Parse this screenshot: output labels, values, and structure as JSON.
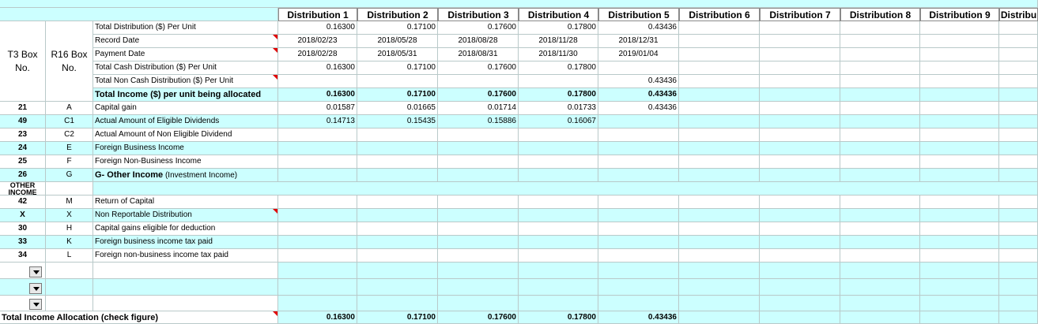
{
  "distribution_headers": [
    "Distribution 1",
    "Distribution 2",
    "Distribution 3",
    "Distribution 4",
    "Distribution 5",
    "Distribution 6",
    "Distribution 7",
    "Distribution 8",
    "Distribution 9",
    "Distribu"
  ],
  "t3_header": "T3 Box No.",
  "r16_header": "R16 Box No.",
  "info_rows": [
    {
      "label": "Total Distribution ($) Per Unit",
      "values": [
        "0.16300",
        "0.17100",
        "0.17600",
        "0.17800",
        "0.43436"
      ],
      "align": "num"
    },
    {
      "label": "Record Date",
      "values": [
        "2018/02/23",
        "2018/05/28",
        "2018/08/28",
        "2018/11/28",
        "2018/12/31"
      ],
      "align": "ctr"
    },
    {
      "label": "Payment Date",
      "values": [
        "2018/02/28",
        "2018/05/31",
        "2018/08/31",
        "2018/11/30",
        "2019/01/04"
      ],
      "align": "ctr"
    },
    {
      "label": "Total Cash Distribution ($) Per Unit",
      "values": [
        "0.16300",
        "0.17100",
        "0.17600",
        "0.17800",
        ""
      ],
      "align": "num"
    },
    {
      "label": "Total Non Cash Distribution ($) Per Unit",
      "values": [
        "",
        "",
        "",
        "",
        "0.43436"
      ],
      "align": "num"
    }
  ],
  "total_income_row": {
    "label": "Total Income ($) per unit being allocated",
    "values": [
      "0.16300",
      "0.17100",
      "0.17600",
      "0.17800",
      "0.43436"
    ]
  },
  "alloc_rows": [
    {
      "t3": "21",
      "r16": "A",
      "label": "Capital gain",
      "values": [
        "0.01587",
        "0.01665",
        "0.01714",
        "0.01733",
        "0.43436"
      ]
    },
    {
      "t3": "49",
      "r16": "C1",
      "label": "Actual Amount of Eligible Dividends",
      "values": [
        "0.14713",
        "0.15435",
        "0.15886",
        "0.16067",
        ""
      ]
    },
    {
      "t3": "23",
      "r16": "C2",
      "label": "Actual Amount of Non Eligible Dividend",
      "values": [
        "",
        "",
        "",
        "",
        ""
      ]
    },
    {
      "t3": "24",
      "r16": "E",
      "label": "Foreign Business Income",
      "values": [
        "",
        "",
        "",
        "",
        ""
      ]
    },
    {
      "t3": "25",
      "r16": "F",
      "label": "Foreign Non-Business Income",
      "values": [
        "",
        "",
        "",
        "",
        ""
      ]
    },
    {
      "t3": "26",
      "r16": "G",
      "label": "G- Other Income",
      "label_extra": " (Investment Income)",
      "values": [
        "",
        "",
        "",
        "",
        ""
      ]
    }
  ],
  "other_income_label": "OTHER INCOME",
  "lower_rows": [
    {
      "t3": "42",
      "r16": "M",
      "label": "Return of Capital"
    },
    {
      "t3": "X",
      "r16": "X",
      "label": "Non Reportable Distribution"
    },
    {
      "t3": "30",
      "r16": "H",
      "label": "Capital gains eligible for deduction"
    },
    {
      "t3": "33",
      "r16": "K",
      "label": "Foreign business income tax paid"
    },
    {
      "t3": "34",
      "r16": "L",
      "label": "Foreign non-business income tax paid"
    }
  ],
  "footer": {
    "label": "Total Income Allocation (check figure)",
    "values": [
      "0.16300",
      "0.17100",
      "0.17600",
      "0.17800",
      "0.43436"
    ]
  }
}
